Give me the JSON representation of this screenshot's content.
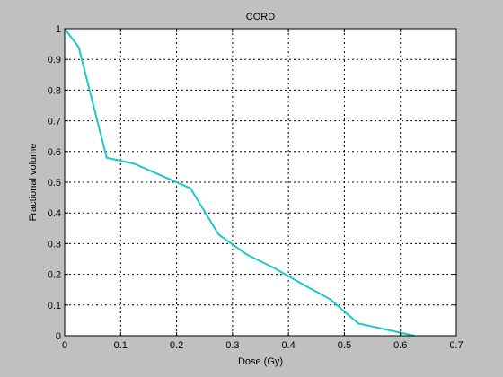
{
  "chart_data": {
    "type": "line",
    "title": "CORD",
    "xlabel": "Dose (Gy)",
    "ylabel": "Fractional volume",
    "xlim": [
      0,
      0.7
    ],
    "ylim": [
      0,
      1
    ],
    "xticks": [
      0,
      0.1,
      0.2,
      0.3,
      0.4,
      0.5,
      0.6,
      0.7
    ],
    "xtick_labels": [
      "0",
      "0.1",
      "0.2",
      "0.3",
      "0.4",
      "0.5",
      "0.6",
      "0.7"
    ],
    "yticks": [
      0,
      0.1,
      0.2,
      0.3,
      0.4,
      0.5,
      0.6,
      0.7,
      0.8,
      0.9,
      1
    ],
    "ytick_labels": [
      "0",
      "0.1",
      "0.2",
      "0.3",
      "0.4",
      "0.5",
      "0.6",
      "0.7",
      "0.8",
      "0.9",
      "1"
    ],
    "grid": true,
    "colors": {
      "figure_background": "#c0c0c0",
      "plot_background": "#ffffff",
      "line": "#1ec8c8",
      "grid": "#000000"
    },
    "series": [
      {
        "x": [
          0,
          0.025,
          0.075,
          0.125,
          0.175,
          0.225,
          0.275,
          0.325,
          0.375,
          0.425,
          0.475,
          0.525,
          0.575,
          0.625
        ],
        "y": [
          1.0,
          0.94,
          0.58,
          0.56,
          0.52,
          0.48,
          0.33,
          0.265,
          0.22,
          0.168,
          0.118,
          0.04,
          0.02,
          0.0
        ]
      }
    ]
  }
}
